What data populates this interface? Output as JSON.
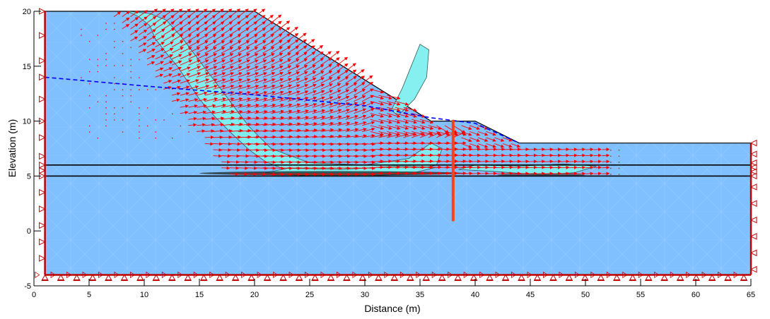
{
  "chart_data": {
    "type": "scatter",
    "subtype": "finite-element-displacement-vector-plot",
    "title": "",
    "xlabel": "Distance (m)",
    "ylabel": "Elevation (m)",
    "xlim": [
      0,
      65
    ],
    "ylim": [
      -5,
      20
    ],
    "x_ticks": [
      0,
      5,
      10,
      15,
      20,
      25,
      30,
      35,
      40,
      45,
      50,
      55,
      60,
      65
    ],
    "y_ticks": [
      -5,
      0,
      5,
      10,
      15,
      20
    ],
    "grid": false,
    "legend": null,
    "domain_boundary": [
      [
        1,
        -4
      ],
      [
        1,
        20
      ],
      [
        20,
        20
      ],
      [
        36,
        10
      ],
      [
        40,
        10
      ],
      [
        44,
        8
      ],
      [
        65,
        8
      ],
      [
        65,
        -4
      ]
    ],
    "ground_surface": [
      [
        1,
        20
      ],
      [
        20,
        20
      ],
      [
        36,
        10
      ],
      [
        40,
        10
      ],
      [
        44,
        8
      ],
      [
        65,
        8
      ]
    ],
    "layer_boundaries": [
      {
        "elevation": 6,
        "x_range": [
          1,
          65
        ]
      },
      {
        "elevation": 5,
        "x_range": [
          1,
          65
        ]
      }
    ],
    "water_table": [
      [
        1,
        14
      ],
      [
        10,
        13.2
      ],
      [
        20,
        12.4
      ],
      [
        30,
        11.4
      ],
      [
        36,
        10.3
      ],
      [
        40,
        9.8
      ],
      [
        44,
        8
      ]
    ],
    "pile": {
      "x": 38,
      "top": 10,
      "bottom": 1
    },
    "boundary_conditions": {
      "left": "x-fixed rollers",
      "right": "x-fixed rollers",
      "bottom": "xy-fixed pins"
    },
    "displacement_field_summary": "Red displacement vectors concentrated in failure zone from x=13 to x=38 above elevation 5 m, pointing down-slope; largest vectors near slope face between x=30 and x=38."
  },
  "colors": {
    "soil_fill": "#80C0FF",
    "boundary": "#C00000",
    "vectors": "#FF0000",
    "water_table": "#0000FF",
    "pile": "#FF4010",
    "contour_fill": "#80F0F0",
    "contour_high": "#A0F0A0",
    "layer_line": "#000000"
  },
  "axes": {
    "x_title": "Distance (m)",
    "y_title": "Elevation (m)",
    "x_tick_labels": [
      "0",
      "5",
      "10",
      "15",
      "20",
      "25",
      "30",
      "35",
      "40",
      "45",
      "50",
      "55",
      "60",
      "65"
    ],
    "y_tick_labels": [
      "-5",
      "0",
      "5",
      "10",
      "15",
      "20"
    ]
  }
}
